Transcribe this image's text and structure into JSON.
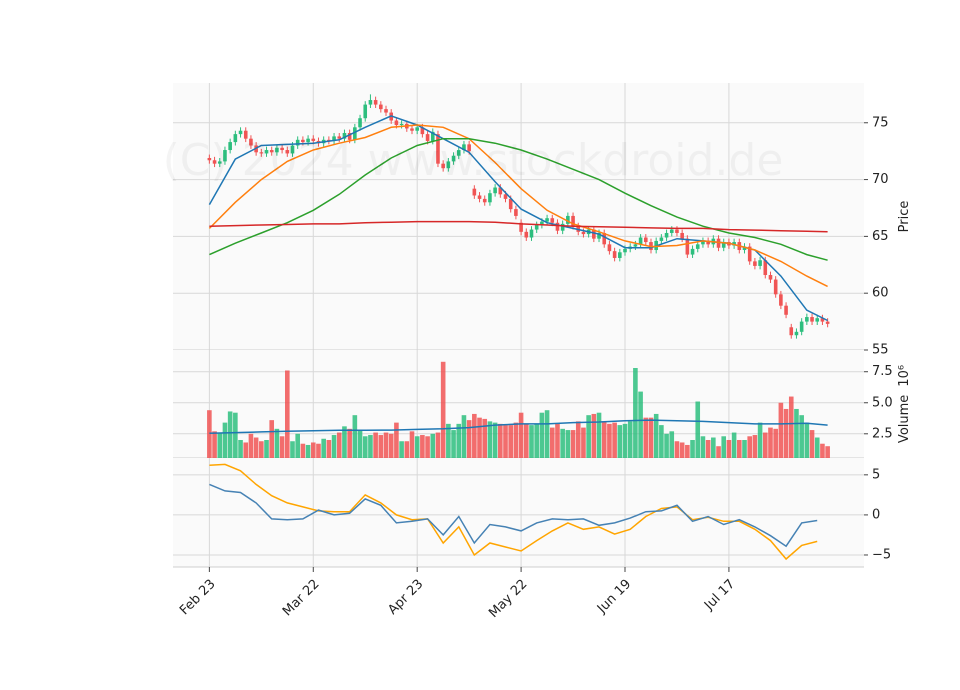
{
  "chart_data": {
    "type": "candlestick",
    "watermark": "(C) 2024 www.stockdroid.de",
    "xlim": [
      -7,
      126
    ],
    "xticks": [
      {
        "value": 0,
        "label": "Feb 23"
      },
      {
        "value": 20,
        "label": "Mar 22"
      },
      {
        "value": 40,
        "label": "Apr 23"
      },
      {
        "value": 60,
        "label": "May 22"
      },
      {
        "value": 80,
        "label": "Jun 19"
      },
      {
        "value": 100,
        "label": "Jul 17"
      }
    ],
    "grid": true,
    "up_color": "#2dbe7e",
    "down_color": "#f05454",
    "panels": [
      {
        "ylabel": "Price",
        "ylim": [
          55,
          78.5
        ],
        "yticks": [
          55,
          60,
          65,
          70,
          75
        ],
        "open": [
          71.9,
          71.7,
          71.4,
          71.6,
          72.6,
          73.3,
          74.0,
          74.3,
          73.6,
          73.0,
          72.4,
          72.3,
          72.6,
          72.4,
          72.8,
          72.6,
          72.3,
          73.0,
          73.5,
          73.3,
          73.6,
          73.4,
          73.2,
          73.5,
          73.4,
          73.8,
          73.6,
          74.1,
          73.5,
          74.6,
          75.4,
          76.6,
          77.0,
          76.6,
          76.2,
          75.9,
          75.2,
          74.8,
          74.9,
          74.5,
          74.3,
          74.6,
          74.0,
          73.4,
          74.0,
          71.4,
          71.0,
          71.6,
          72.1,
          72.6,
          73.1,
          69.2,
          68.6,
          68.3,
          68.0,
          68.8,
          69.3,
          68.7,
          68.3,
          67.4,
          66.2,
          65.4,
          64.9,
          65.6,
          66.0,
          66.3,
          66.6,
          66.2,
          65.5,
          66.1,
          66.8,
          65.9,
          65.4,
          65.2,
          65.6,
          64.8,
          65.3,
          64.3,
          63.7,
          63.1,
          63.6,
          63.9,
          64.1,
          64.3,
          64.9,
          64.5,
          63.8,
          64.6,
          64.9,
          65.3,
          65.6,
          65.3,
          64.8,
          63.4,
          63.9,
          64.3,
          64.6,
          64.3,
          64.8,
          64.0,
          64.5,
          64.2,
          64.5,
          63.8,
          64.1,
          62.8,
          62.4,
          62.9,
          61.6,
          61.2,
          59.9,
          58.9,
          57.0,
          56.3,
          56.6,
          57.5,
          57.9,
          57.5,
          57.8,
          57.5
        ],
        "high": [
          72.2,
          72.0,
          71.9,
          72.9,
          73.6,
          74.3,
          74.6,
          74.6,
          73.9,
          73.3,
          72.7,
          72.9,
          72.9,
          73.1,
          73.1,
          72.9,
          73.3,
          73.8,
          73.8,
          73.9,
          73.9,
          73.7,
          73.8,
          73.8,
          74.1,
          74.1,
          74.4,
          74.4,
          74.9,
          75.7,
          76.9,
          77.5,
          77.3,
          76.9,
          76.5,
          76.2,
          75.5,
          75.2,
          75.2,
          74.8,
          74.9,
          74.9,
          74.3,
          74.5,
          74.3,
          71.7,
          71.9,
          72.4,
          72.9,
          73.4,
          73.4,
          69.5,
          68.9,
          68.6,
          69.1,
          69.6,
          69.6,
          69.0,
          68.6,
          67.7,
          66.5,
          65.7,
          65.9,
          66.3,
          66.6,
          66.9,
          66.9,
          66.5,
          66.4,
          67.1,
          67.1,
          66.2,
          65.7,
          65.9,
          65.9,
          65.6,
          65.6,
          64.6,
          64.0,
          63.9,
          64.2,
          64.4,
          64.6,
          65.2,
          65.2,
          64.8,
          64.9,
          65.2,
          65.6,
          65.9,
          65.9,
          65.6,
          65.1,
          64.2,
          64.6,
          64.9,
          64.9,
          65.1,
          65.1,
          64.8,
          64.8,
          64.8,
          64.8,
          64.4,
          64.4,
          63.1,
          63.2,
          63.2,
          61.9,
          61.5,
          60.2,
          59.2,
          57.3,
          56.9,
          57.8,
          58.2,
          58.2,
          58.1,
          58.1,
          57.8
        ],
        "low": [
          71.4,
          71.1,
          71.1,
          71.3,
          72.3,
          73.0,
          73.7,
          73.3,
          72.7,
          72.1,
          72.0,
          72.0,
          72.1,
          72.1,
          72.3,
          72.0,
          72.0,
          72.7,
          73.0,
          73.0,
          73.1,
          72.9,
          72.9,
          73.1,
          73.1,
          73.3,
          73.3,
          73.2,
          73.2,
          74.3,
          75.1,
          76.3,
          76.3,
          75.9,
          75.6,
          74.9,
          74.5,
          74.5,
          74.2,
          74.0,
          74.0,
          73.7,
          73.1,
          73.1,
          71.1,
          70.7,
          70.7,
          71.3,
          71.8,
          72.3,
          72.2,
          68.3,
          68.0,
          67.7,
          67.7,
          68.5,
          68.4,
          68.0,
          67.1,
          66.5,
          65.1,
          64.6,
          64.6,
          65.3,
          65.7,
          66.0,
          65.9,
          65.2,
          65.2,
          65.8,
          65.6,
          65.1,
          64.9,
          64.9,
          64.5,
          64.5,
          64.0,
          63.4,
          62.8,
          62.8,
          63.3,
          63.6,
          63.8,
          64.0,
          64.2,
          63.5,
          63.5,
          64.3,
          64.6,
          65.0,
          65.0,
          64.5,
          63.1,
          63.1,
          63.6,
          64.0,
          64.0,
          64.0,
          63.7,
          63.7,
          63.9,
          63.9,
          63.5,
          63.5,
          62.5,
          62.1,
          62.1,
          61.3,
          60.9,
          59.6,
          58.6,
          57.8,
          56.0,
          56.0,
          56.3,
          57.2,
          57.2,
          57.2,
          57.2,
          57.0
        ],
        "close": [
          71.7,
          71.4,
          71.6,
          72.6,
          73.3,
          74.0,
          74.3,
          73.6,
          73.0,
          72.4,
          72.3,
          72.6,
          72.4,
          72.8,
          72.6,
          72.3,
          73.0,
          73.5,
          73.3,
          73.6,
          73.4,
          73.2,
          73.5,
          73.4,
          73.8,
          73.6,
          74.1,
          73.5,
          74.6,
          75.4,
          76.6,
          77.0,
          76.6,
          76.2,
          75.9,
          75.2,
          74.8,
          74.9,
          74.5,
          74.3,
          74.6,
          74.0,
          73.4,
          74.2,
          71.4,
          71.0,
          71.6,
          72.1,
          72.6,
          73.1,
          72.5,
          68.6,
          68.3,
          68.0,
          68.8,
          69.3,
          68.7,
          68.3,
          67.4,
          66.8,
          65.4,
          64.9,
          65.6,
          66.0,
          66.3,
          66.6,
          66.2,
          65.5,
          66.1,
          66.8,
          65.9,
          65.4,
          65.2,
          65.6,
          64.8,
          65.3,
          64.3,
          63.7,
          63.1,
          63.6,
          63.9,
          64.1,
          64.3,
          64.9,
          64.5,
          63.8,
          64.6,
          64.9,
          65.3,
          65.6,
          65.3,
          64.8,
          63.4,
          63.9,
          64.3,
          64.6,
          64.3,
          64.8,
          64.0,
          64.5,
          64.2,
          64.5,
          63.8,
          64.1,
          62.8,
          62.4,
          62.9,
          61.6,
          61.2,
          59.9,
          58.9,
          58.1,
          56.3,
          56.6,
          57.5,
          57.9,
          57.5,
          57.8,
          57.5,
          57.3
        ],
        "lines": [
          {
            "color": "#1f77b4",
            "x": [
              0,
              5,
              10,
              15,
              20,
              25,
              30,
              35,
              40,
              45,
              50,
              55,
              60,
              65,
              70,
              75,
              80,
              85,
              90,
              95,
              100,
              105,
              110,
              115,
              119
            ],
            "values": [
              67.8,
              71.8,
              73.0,
              73.1,
              73.2,
              73.5,
              74.6,
              75.6,
              74.8,
              73.6,
              72.4,
              69.8,
              67.4,
              66.2,
              65.7,
              65.2,
              64.0,
              64.0,
              64.8,
              64.6,
              64.4,
              63.8,
              61.5,
              58.5,
              57.6
            ]
          },
          {
            "color": "#ff7f0e",
            "x": [
              0,
              5,
              10,
              15,
              20,
              25,
              30,
              35,
              40,
              45,
              50,
              55,
              60,
              65,
              70,
              75,
              80,
              85,
              90,
              95,
              100,
              105,
              110,
              115,
              119
            ],
            "values": [
              65.7,
              68.0,
              70.0,
              71.6,
              72.6,
              73.2,
              73.7,
              74.6,
              74.8,
              74.6,
              73.6,
              71.5,
              69.2,
              67.3,
              66.1,
              65.4,
              64.6,
              64.1,
              64.2,
              64.6,
              64.4,
              63.8,
              62.8,
              61.5,
              60.6
            ]
          },
          {
            "color": "#2ca02c",
            "x": [
              0,
              5,
              10,
              15,
              20,
              25,
              30,
              35,
              40,
              45,
              50,
              55,
              60,
              65,
              70,
              75,
              80,
              85,
              90,
              95,
              100,
              105,
              110,
              115,
              119
            ],
            "values": [
              63.4,
              64.4,
              65.3,
              66.2,
              67.3,
              68.7,
              70.4,
              71.9,
              73.0,
              73.6,
              73.6,
              73.2,
              72.6,
              71.8,
              70.9,
              70.0,
              68.8,
              67.7,
              66.7,
              65.9,
              65.3,
              64.9,
              64.3,
              63.4,
              62.9
            ]
          },
          {
            "color": "#d62728",
            "x": [
              0,
              5,
              10,
              15,
              20,
              25,
              30,
              35,
              40,
              45,
              50,
              55,
              60,
              65,
              70,
              75,
              80,
              85,
              90,
              95,
              100,
              105,
              110,
              115,
              119
            ],
            "values": [
              65.9,
              65.95,
              66.0,
              66.05,
              66.1,
              66.1,
              66.2,
              66.25,
              66.3,
              66.3,
              66.3,
              66.25,
              66.1,
              66.0,
              65.9,
              65.85,
              65.8,
              65.75,
              65.7,
              65.7,
              65.6,
              65.55,
              65.5,
              65.45,
              65.4
            ]
          }
        ]
      },
      {
        "ylabel": "Volume",
        "ylabel_scale": "10⁶",
        "ylim": [
          0.55,
          9.25
        ],
        "yticks": [
          {
            "value": 2.5,
            "label": "2.5"
          },
          {
            "value": 5,
            "label": "5.0"
          },
          {
            "value": 7.5,
            "label": "7.5"
          }
        ],
        "values": [
          4.4,
          2.7,
          2.6,
          3.4,
          4.3,
          4.2,
          2.0,
          1.8,
          2.5,
          2.2,
          1.9,
          2.0,
          3.6,
          2.9,
          2.3,
          7.6,
          1.9,
          2.5,
          1.7,
          1.6,
          1.8,
          1.7,
          2.1,
          2.0,
          2.4,
          2.6,
          3.1,
          2.9,
          4.0,
          2.8,
          2.3,
          2.4,
          2.6,
          2.4,
          2.6,
          2.5,
          3.4,
          1.9,
          1.9,
          2.7,
          2.3,
          2.4,
          2.3,
          2.5,
          2.6,
          8.3,
          3.3,
          2.8,
          3.3,
          4.0,
          3.6,
          4.1,
          3.8,
          3.7,
          3.5,
          3.4,
          3.3,
          3.2,
          3.2,
          3.4,
          4.2,
          3.3,
          3.2,
          3.3,
          4.2,
          4.4,
          3.0,
          3.3,
          2.9,
          2.8,
          2.8,
          3.5,
          3.0,
          4.0,
          4.1,
          4.2,
          3.5,
          3.3,
          3.4,
          3.2,
          3.3,
          3.5,
          7.8,
          5.9,
          3.8,
          3.8,
          4.1,
          3.2,
          2.5,
          2.7,
          1.9,
          1.8,
          1.6,
          2.0,
          5.1,
          2.3,
          2.0,
          2.2,
          1.5,
          2.3,
          2.0,
          2.6,
          2.0,
          2.0,
          2.3,
          2.4,
          3.4,
          2.6,
          3.0,
          2.9,
          5.0,
          4.5,
          5.5,
          4.5,
          4.0,
          3.4,
          2.8,
          2.2,
          1.7,
          1.5
        ],
        "lines": [
          {
            "color": "#1f77b4",
            "x": [
              0,
              5,
              10,
              15,
              20,
              25,
              30,
              35,
              40,
              45,
              50,
              55,
              60,
              65,
              70,
              75,
              80,
              85,
              90,
              95,
              100,
              105,
              110,
              115,
              119
            ],
            "values": [
              2.55,
              2.6,
              2.65,
              2.7,
              2.75,
              2.78,
              2.78,
              2.8,
              2.85,
              2.9,
              3.0,
              3.2,
              3.3,
              3.3,
              3.4,
              3.45,
              3.55,
              3.6,
              3.55,
              3.5,
              3.4,
              3.3,
              3.3,
              3.35,
              3.2
            ]
          }
        ]
      },
      {
        "ylim": [
          -6.5,
          7.1
        ],
        "yticks": [
          {
            "value": -5,
            "label": "−5"
          },
          0,
          5
        ],
        "lines": [
          {
            "color": "#ffa500",
            "x": [
              0,
              3,
              6,
              9,
              12,
              15,
              18,
              21,
              24,
              27,
              30,
              33,
              36,
              39,
              42,
              45,
              48,
              51,
              54,
              57,
              60,
              63,
              66,
              69,
              72,
              75,
              78,
              81,
              84,
              87,
              90,
              93,
              96,
              99,
              102,
              105,
              108,
              111,
              114,
              117
            ],
            "values": [
              6.2,
              6.3,
              5.5,
              3.8,
              2.4,
              1.5,
              1.0,
              0.5,
              0.4,
              0.4,
              2.5,
              1.5,
              0.0,
              -0.6,
              -0.5,
              -3.5,
              -1.5,
              -5.0,
              -3.5,
              -4.0,
              -4.5,
              -3.2,
              -2.0,
              -1.0,
              -1.8,
              -1.5,
              -2.4,
              -1.8,
              -0.2,
              0.8,
              1.0,
              -0.6,
              -0.3,
              -0.8,
              -0.8,
              -1.8,
              -3.2,
              -5.5,
              -3.8,
              -3.3
            ]
          },
          {
            "color": "#4682b4",
            "x": [
              0,
              3,
              6,
              9,
              12,
              15,
              18,
              21,
              24,
              27,
              30,
              33,
              36,
              39,
              42,
              45,
              48,
              51,
              54,
              57,
              60,
              63,
              66,
              69,
              72,
              75,
              78,
              81,
              84,
              87,
              90,
              93,
              96,
              99,
              102,
              105,
              108,
              111,
              114,
              117
            ],
            "values": [
              3.8,
              3.0,
              2.8,
              1.5,
              -0.5,
              -0.6,
              -0.5,
              0.6,
              0.0,
              0.2,
              2.0,
              1.2,
              -1.0,
              -0.8,
              -0.5,
              -2.5,
              -0.2,
              -3.5,
              -1.2,
              -1.5,
              -2.0,
              -1.0,
              -0.5,
              -0.6,
              -0.5,
              -1.3,
              -1.0,
              -0.4,
              0.4,
              0.5,
              1.2,
              -0.8,
              -0.2,
              -1.2,
              -0.6,
              -1.5,
              -2.6,
              -3.9,
              -1.0,
              -0.7
            ]
          }
        ]
      }
    ]
  }
}
